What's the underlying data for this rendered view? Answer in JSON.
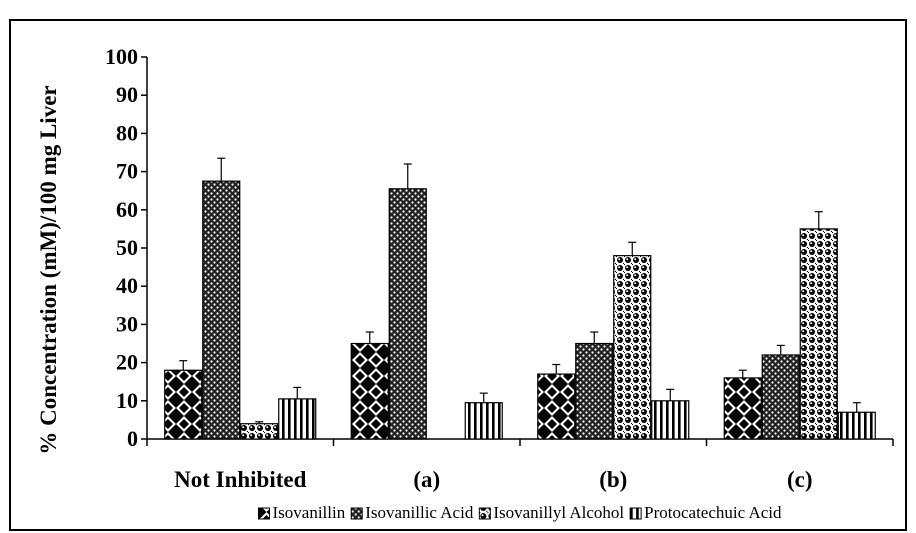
{
  "chart_data": {
    "type": "bar",
    "title": "",
    "xlabel": "",
    "ylabel": "% Concentration (mM)/100 mg Liver",
    "ylim": [
      0,
      100
    ],
    "yticks": [
      0,
      10,
      20,
      30,
      40,
      50,
      60,
      70,
      80,
      90,
      100
    ],
    "categories": [
      "Not Inhibited",
      "(a)",
      "(b)",
      "(c)"
    ],
    "grid": false,
    "legend_position": "bottom",
    "series": [
      {
        "name": "Isovanillin",
        "pattern": "diamond-checker",
        "values": [
          18,
          25,
          17,
          16
        ],
        "errors": [
          2.5,
          3,
          2.5,
          2
        ]
      },
      {
        "name": "Isovanillic Acid",
        "pattern": "dense-dot",
        "values": [
          67.5,
          65.5,
          25,
          22
        ],
        "errors": [
          6,
          6.5,
          3,
          2.5
        ]
      },
      {
        "name": "Isovanillyl Alcohol",
        "pattern": "circle-dot",
        "values": [
          4,
          0,
          48,
          55
        ],
        "errors": [
          0.5,
          0,
          3.5,
          4.5
        ]
      },
      {
        "name": "Protocatechuic Acid",
        "pattern": "vertical-stripes",
        "values": [
          10.5,
          9.5,
          10,
          7
        ],
        "errors": [
          3,
          2.5,
          3,
          2.5
        ]
      }
    ]
  }
}
